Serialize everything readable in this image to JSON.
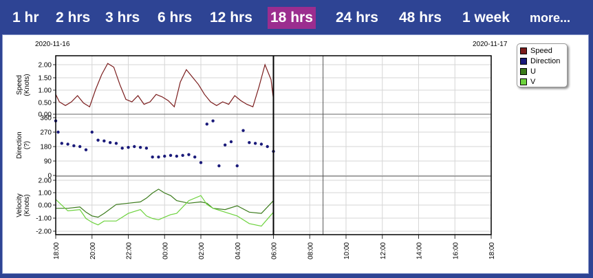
{
  "tabs": [
    {
      "label": "1 hr",
      "active": false
    },
    {
      "label": "2 hrs",
      "active": false
    },
    {
      "label": "3 hrs",
      "active": false
    },
    {
      "label": "6 hrs",
      "active": false
    },
    {
      "label": "12 hrs",
      "active": false
    },
    {
      "label": "18 hrs",
      "active": true
    },
    {
      "label": "24 hrs",
      "active": false
    },
    {
      "label": "48 hrs",
      "active": false
    },
    {
      "label": "1 week",
      "active": false
    },
    {
      "label": "more...",
      "active": false
    }
  ],
  "colors": {
    "speed": "#7a1c1c",
    "direction": "#1a1a7a",
    "u": "#3a7a1a",
    "v": "#6cd23c",
    "tab_active": "#9b2d8f",
    "header": "#2e4494"
  },
  "chart": {
    "date_left": "2020-11-16",
    "date_right": "2020-11-17",
    "legend": [
      "Speed",
      "Direction",
      "U",
      "V"
    ],
    "x_ticks": [
      "18:00",
      "20:00",
      "22:00",
      "00:00",
      "02:00",
      "04:00",
      "06:00",
      "08:00",
      "10:00",
      "12:00",
      "14:00",
      "16:00",
      "18:00"
    ],
    "now_marker_hours": 18,
    "second_marker_hours": 22.1
  },
  "chart_data": [
    {
      "type": "line",
      "name": "speed",
      "ylabel": "Speed\n(Knots)",
      "yticks": [
        "2.00",
        "1.50",
        "1.00",
        "0.50",
        "0.00"
      ],
      "ylim": [
        0,
        2.2
      ],
      "x_unit": "hours since 18:00",
      "series": [
        {
          "name": "Speed",
          "x": [
            0,
            0.3,
            0.8,
            1.3,
            1.8,
            2.3,
            2.8,
            3.3,
            3.8,
            4.3,
            4.8,
            5.3,
            5.8,
            6.3,
            6.8,
            7.3,
            7.8,
            8.3,
            8.8,
            9.3,
            9.8,
            10.3,
            10.8,
            11.3,
            11.8,
            12.3,
            12.8,
            13.3,
            13.8,
            14.3,
            14.8,
            15.3,
            15.8,
            16.3,
            16.8,
            17.3,
            17.8,
            18
          ],
          "values": [
            0.8,
            0.5,
            0.35,
            0.5,
            0.75,
            0.45,
            0.3,
            1.0,
            1.6,
            2.05,
            1.9,
            1.2,
            0.6,
            0.5,
            0.75,
            0.4,
            0.5,
            0.8,
            0.7,
            0.55,
            0.3,
            1.3,
            1.8,
            1.5,
            1.2,
            0.8,
            0.5,
            0.35,
            0.5,
            0.4,
            0.75,
            0.55,
            0.4,
            0.3,
            1.1,
            2.0,
            1.4,
            0.6
          ]
        }
      ]
    },
    {
      "type": "scatter",
      "name": "direction",
      "ylabel": "Direction\n(?)",
      "yticks": [
        "360",
        "270",
        "180",
        "90",
        "0"
      ],
      "ylim": [
        0,
        360
      ],
      "series": [
        {
          "name": "Direction",
          "x": [
            0,
            0.2,
            0.5,
            1.0,
            1.5,
            2.0,
            2.5,
            3.0,
            3.5,
            4.0,
            4.5,
            5.0,
            5.5,
            6.0,
            6.5,
            7.0,
            7.5,
            8.0,
            8.5,
            9.0,
            9.5,
            10.0,
            10.5,
            11.0,
            11.5,
            12.0,
            12.5,
            13.0,
            13.5,
            14.0,
            14.5,
            15.0,
            15.5,
            16.0,
            16.5,
            17.0,
            17.5,
            18.0
          ],
          "values": [
            340,
            270,
            200,
            195,
            185,
            180,
            160,
            270,
            220,
            215,
            205,
            200,
            170,
            175,
            180,
            175,
            170,
            115,
            115,
            120,
            125,
            120,
            125,
            130,
            115,
            80,
            320,
            340,
            60,
            190,
            210,
            60,
            280,
            205,
            200,
            195,
            180,
            150
          ]
        }
      ]
    },
    {
      "type": "line",
      "name": "velocity",
      "ylabel": "Velocity\n(Knots)",
      "yticks": [
        "2.00",
        "1.00",
        "0.00",
        "-1.00",
        "-2.00"
      ],
      "ylim": [
        -2.2,
        2.2
      ],
      "series": [
        {
          "name": "U",
          "x": [
            0,
            1,
            2,
            2.5,
            3,
            3.5,
            4,
            5,
            6,
            7,
            7.5,
            8,
            8.5,
            9,
            9.5,
            10,
            11,
            12,
            12.5,
            13,
            14,
            15,
            16,
            17,
            18
          ],
          "values": [
            -0.2,
            -0.2,
            -0.1,
            -0.5,
            -0.8,
            -0.9,
            -0.6,
            0.1,
            0.2,
            0.3,
            0.6,
            1.0,
            1.3,
            1.0,
            0.8,
            0.4,
            0.2,
            0.3,
            0.2,
            -0.2,
            -0.3,
            0.0,
            -0.5,
            -0.6,
            0.4
          ]
        },
        {
          "name": "V",
          "x": [
            0,
            1,
            2,
            2.5,
            3,
            3.5,
            4,
            5,
            6,
            7,
            7.5,
            8,
            8.5,
            9,
            9.5,
            10,
            11,
            12,
            12.5,
            13,
            14,
            15,
            16,
            17,
            18
          ],
          "values": [
            0.5,
            -0.4,
            -0.3,
            -1.0,
            -1.3,
            -1.5,
            -1.2,
            -1.2,
            -0.6,
            -0.3,
            -0.8,
            -1.0,
            -1.1,
            -0.9,
            -0.7,
            -0.6,
            0.4,
            0.8,
            0.1,
            -0.2,
            -0.5,
            -0.8,
            -1.4,
            -1.6,
            -0.5
          ]
        }
      ]
    }
  ]
}
